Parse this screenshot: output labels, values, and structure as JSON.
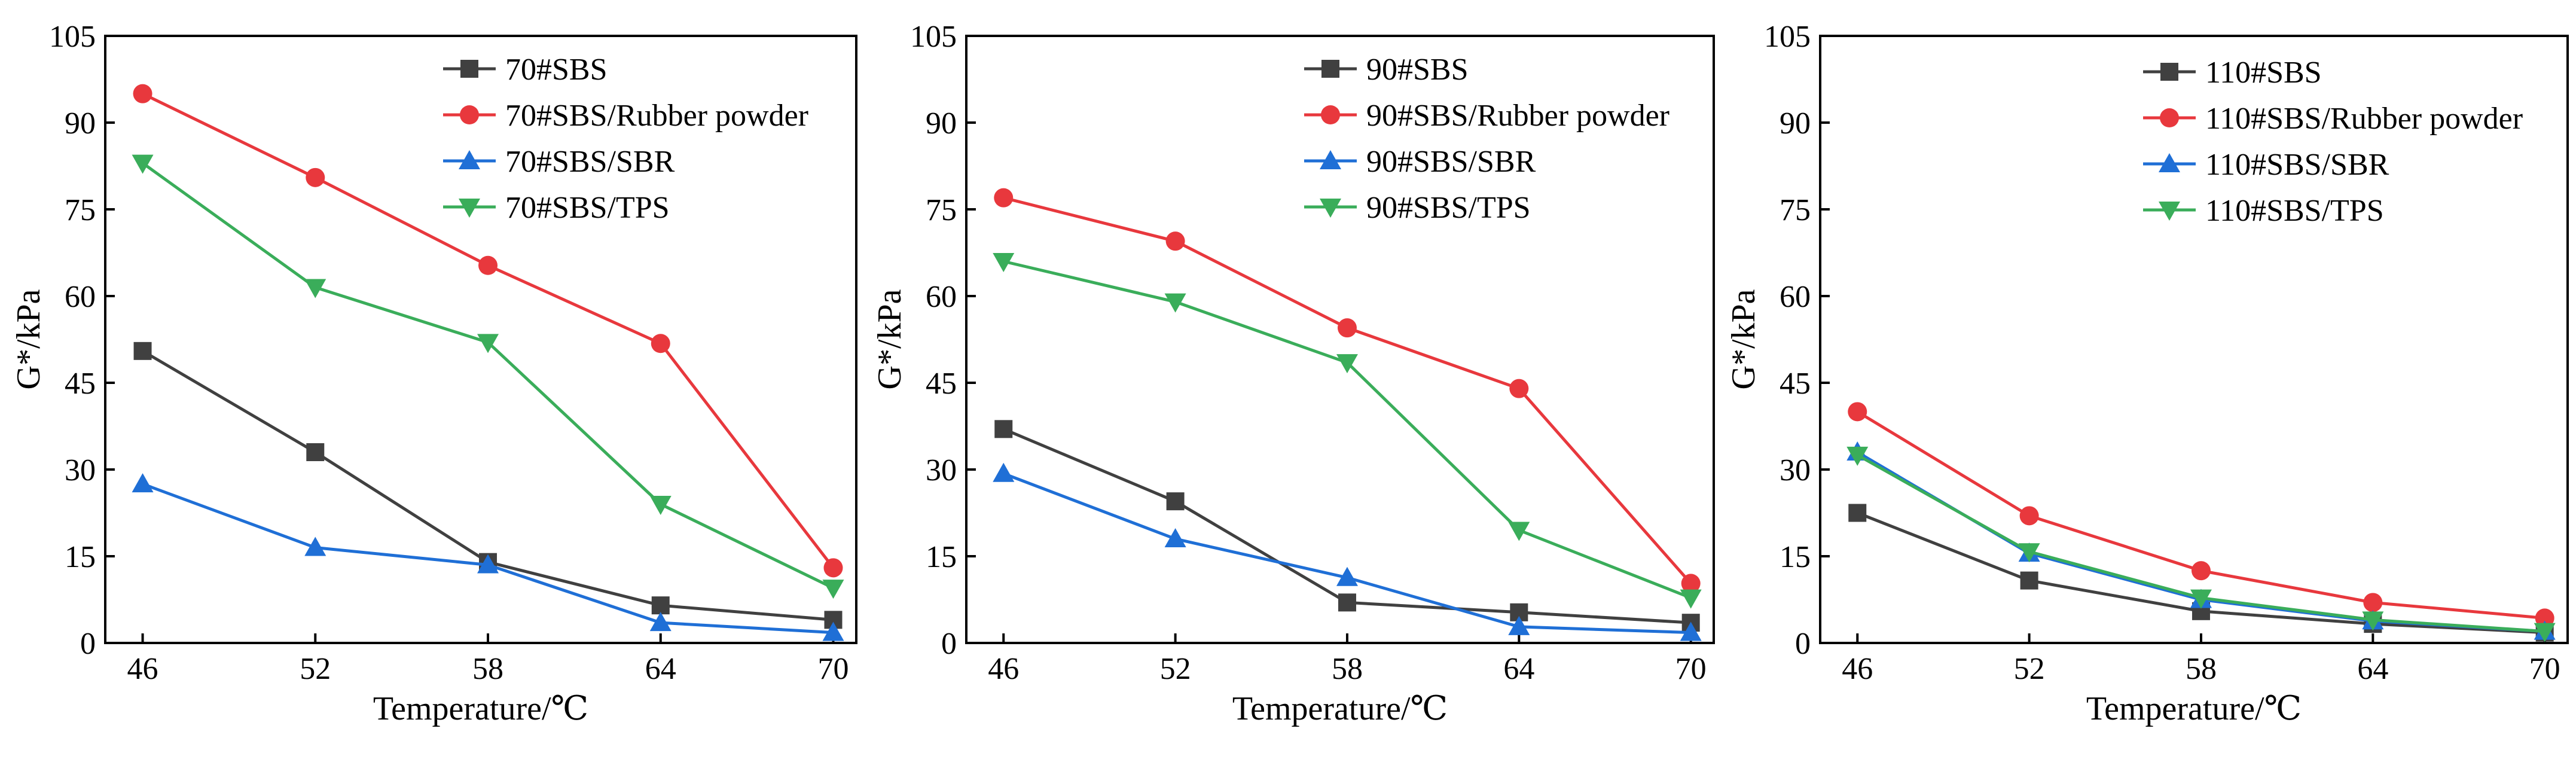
{
  "colors": {
    "s1": "#404040",
    "s2": "#e8383d",
    "s3": "#1f6fd6",
    "s4": "#3aad5a"
  },
  "markers": [
    "square",
    "circle",
    "triangle-up",
    "triangle-down"
  ],
  "chart_data": [
    {
      "type": "line",
      "xlabel": "Temperature/℃",
      "ylabel": "G*/kPa",
      "x": [
        46,
        52,
        58,
        64,
        70
      ],
      "xticks": [
        "46",
        "52",
        "58",
        "64",
        "70"
      ],
      "ylim": [
        0,
        105
      ],
      "yticks": [
        "0",
        "15",
        "30",
        "45",
        "60",
        "75",
        "90",
        "105"
      ],
      "legend_position": "top-right",
      "series": [
        {
          "name": "70#SBS",
          "values": [
            50.5,
            33.0,
            14.0,
            6.5,
            4.0
          ]
        },
        {
          "name": "70#SBS/Rubber powder",
          "values": [
            95.0,
            80.5,
            65.3,
            51.8,
            13.0
          ]
        },
        {
          "name": "70#SBS/SBR",
          "values": [
            27.5,
            16.5,
            13.5,
            3.5,
            1.8
          ]
        },
        {
          "name": "70#SBS/TPS",
          "values": [
            83.0,
            61.5,
            52.0,
            24.0,
            9.5
          ]
        }
      ]
    },
    {
      "type": "line",
      "xlabel": "Temperature/℃",
      "ylabel": "G*/kPa",
      "x": [
        46,
        52,
        58,
        64,
        70
      ],
      "xticks": [
        "46",
        "52",
        "58",
        "64",
        "70"
      ],
      "ylim": [
        0,
        105
      ],
      "yticks": [
        "0",
        "15",
        "30",
        "45",
        "60",
        "75",
        "90",
        "105"
      ],
      "legend_position": "top-right",
      "series": [
        {
          "name": "90#SBS",
          "values": [
            37.0,
            24.5,
            7.0,
            5.3,
            3.5
          ]
        },
        {
          "name": "90#SBS/Rubber powder",
          "values": [
            77.0,
            69.5,
            54.5,
            44.0,
            10.3
          ]
        },
        {
          "name": "90#SBS/SBR",
          "values": [
            29.3,
            18.0,
            11.3,
            2.8,
            1.8
          ]
        },
        {
          "name": "90#SBS/TPS",
          "values": [
            66.0,
            59.0,
            48.5,
            19.5,
            7.8
          ]
        }
      ]
    },
    {
      "type": "line",
      "xlabel": "Temperature/℃",
      "ylabel": "G*/kPa",
      "x": [
        46,
        52,
        58,
        64,
        70
      ],
      "xticks": [
        "46",
        "52",
        "58",
        "64",
        "70"
      ],
      "ylim": [
        0,
        105
      ],
      "yticks": [
        "0",
        "15",
        "30",
        "45",
        "60",
        "75",
        "90",
        "105"
      ],
      "legend_position": "top-right",
      "series": [
        {
          "name": "110#SBS",
          "values": [
            22.5,
            10.8,
            5.5,
            3.3,
            1.8
          ]
        },
        {
          "name": "110#SBS/Rubber powder",
          "values": [
            40.0,
            22.0,
            12.5,
            7.0,
            4.3
          ]
        },
        {
          "name": "110#SBS/SBR",
          "values": [
            33.0,
            15.5,
            7.5,
            3.8,
            2.0
          ]
        },
        {
          "name": "110#SBS/TPS",
          "values": [
            32.5,
            15.8,
            7.8,
            4.0,
            2.0
          ]
        }
      ]
    }
  ]
}
